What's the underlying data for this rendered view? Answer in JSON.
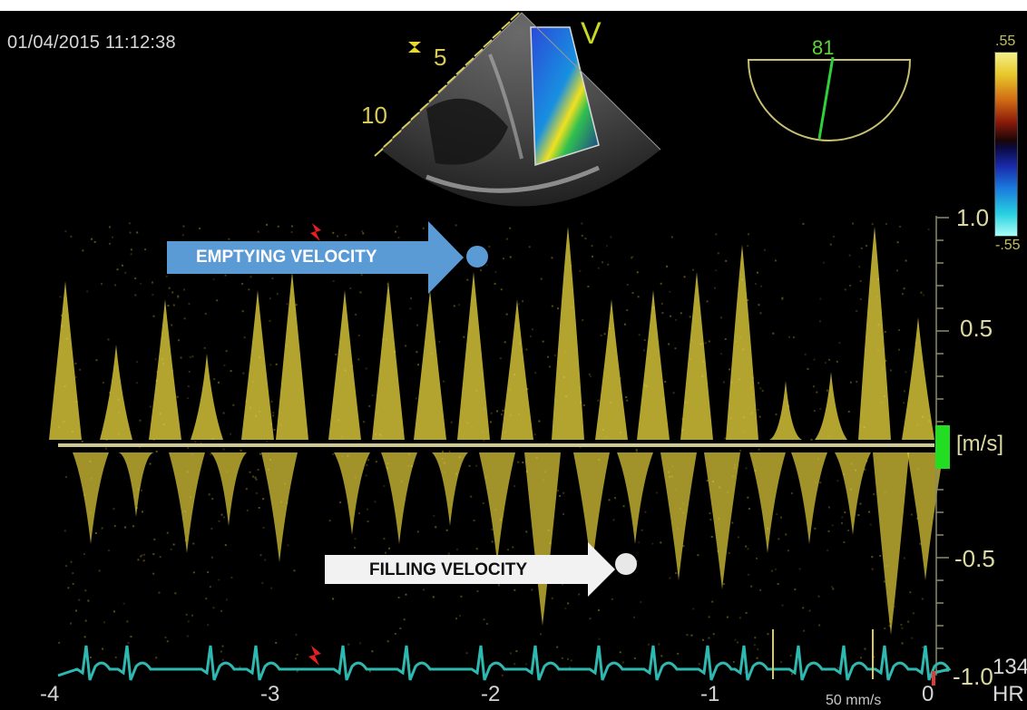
{
  "header": {
    "timestamp": "01/04/2015 11:12:38",
    "mode_label": "V"
  },
  "sector_scale": {
    "near_depth": "5",
    "far_depth": "10"
  },
  "angle_indicator": {
    "value": "81"
  },
  "color_bar": {
    "top_label": ".55",
    "bottom_label": "-.55"
  },
  "doppler_axis": {
    "unit": "[m/s]",
    "tick_labels": [
      "1.0",
      "0.5",
      "-0.5",
      "-1.0"
    ]
  },
  "time_axis": {
    "labels": [
      "-4",
      "-3",
      "-2",
      "-1",
      "0"
    ],
    "sweep_speed": "50 mm/s"
  },
  "ecg": {
    "hr_label": "HR",
    "hr_value": "134"
  },
  "annotations": {
    "emptying": "EMPTYING VELOCITY",
    "filling": "FILLING VELOCITY"
  },
  "colors": {
    "spectrum": "#e6d23c",
    "ecg": "#2fb8b0",
    "emptying_arrow": "#5b9bd5",
    "filling_arrow": "#f2f2f2",
    "baseline_marker": "#22dd22"
  }
}
